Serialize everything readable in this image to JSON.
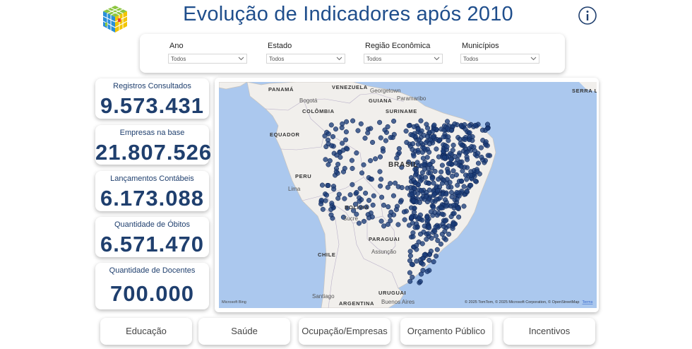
{
  "header": {
    "title": "Evolução de Indicadores após 2010"
  },
  "filters": [
    {
      "label": "Ano",
      "value": "Todos"
    },
    {
      "label": "Estado",
      "value": "Todos"
    },
    {
      "label": "Região Econômica",
      "value": "Todos"
    },
    {
      "label": "Municípios",
      "value": "Todos"
    }
  ],
  "kpis": [
    {
      "label": "Registros Consultados",
      "value": "9.573.431"
    },
    {
      "label": "Empresas na base",
      "value": "21.807.526"
    },
    {
      "label": "Lançamentos Contábeis",
      "value": "6.173.088"
    },
    {
      "label": "Quantidade de Óbitos",
      "value": "6.571.470"
    },
    {
      "label": "Quantidade de Docentes",
      "value": "700.000"
    }
  ],
  "map": {
    "labels": [
      "PANAMÁ",
      "VENEZUELA",
      "Bogotá",
      "Georgetown",
      "GUIANA",
      "Paramaribo",
      "COLÔMBIA",
      "SURINAME",
      "EQUADOR",
      "BRASIL",
      "PERU",
      "Lima",
      "BOLÍVIA",
      "Sucre",
      "PARAGUAI",
      "Assunção",
      "CHILE",
      "Santiago",
      "URUGUAI",
      "Buenos Aires",
      "ARGENTINA",
      "SERRA LE"
    ],
    "attribution": "© 2025 TomTom, © 2025 Microsoft Corporation, © OpenStreetMap",
    "terms": "Terms",
    "logo": "Microsoft Bing"
  },
  "buttons": [
    "Educação",
    "Saúde",
    "Ocupação/Empresas",
    "Orçamento Público",
    "Incentivos"
  ]
}
